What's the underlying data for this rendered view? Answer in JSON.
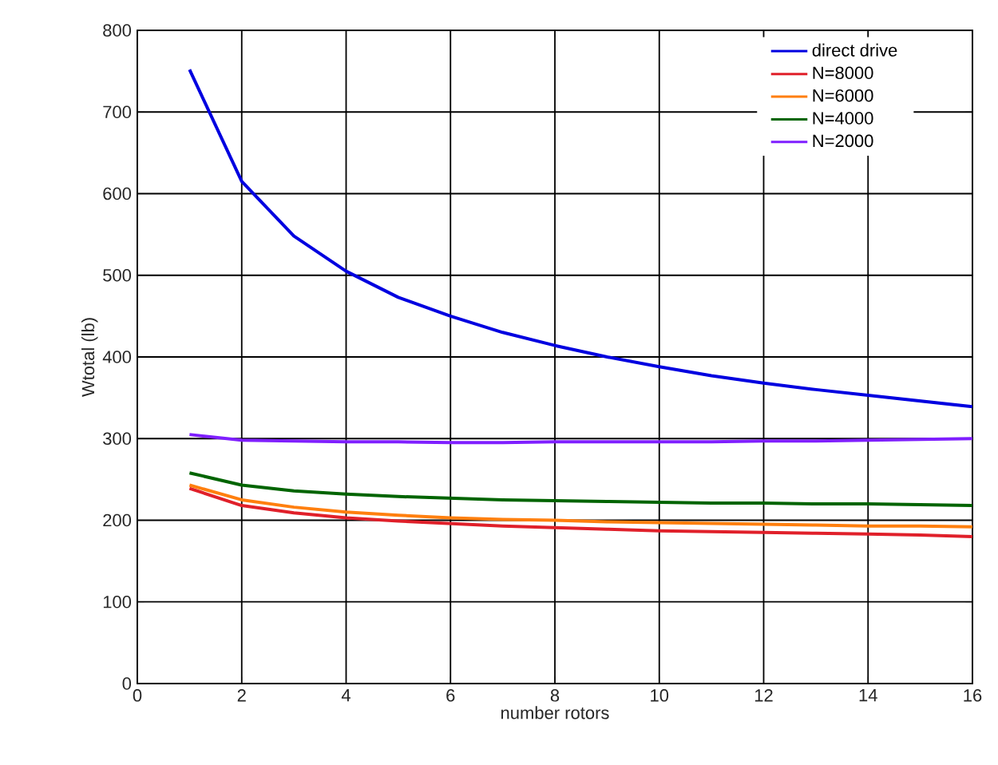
{
  "chart_data": {
    "type": "line",
    "xlabel": "number rotors",
    "ylabel": "Wtotal (lb)",
    "x": [
      1,
      2,
      3,
      4,
      5,
      6,
      7,
      8,
      9,
      10,
      11,
      12,
      13,
      14,
      15,
      16
    ],
    "series": [
      {
        "name": "direct drive",
        "color": "#0000e0",
        "values": [
          752,
          615,
          548,
          505,
          473,
          450,
          430,
          414,
          400,
          388,
          377,
          368,
          360,
          353,
          346,
          339
        ]
      },
      {
        "name": "N=8000",
        "color": "#e0202a",
        "values": [
          239,
          218,
          209,
          203,
          199,
          196,
          193,
          191,
          189,
          187,
          186,
          185,
          184,
          183,
          182,
          180
        ]
      },
      {
        "name": "N=6000",
        "color": "#ff7f0e",
        "values": [
          243,
          225,
          216,
          210,
          206,
          203,
          201,
          200,
          198,
          197,
          196,
          195,
          194,
          193,
          193,
          192
        ]
      },
      {
        "name": "N=4000",
        "color": "#006400",
        "values": [
          258,
          243,
          236,
          232,
          229,
          227,
          225,
          224,
          223,
          222,
          221,
          221,
          220,
          220,
          219,
          218
        ]
      },
      {
        "name": "N=2000",
        "color": "#7f1fff",
        "values": [
          305,
          298,
          297,
          296,
          296,
          295,
          295,
          296,
          296,
          296,
          296,
          297,
          297,
          298,
          299,
          300
        ]
      }
    ],
    "xlim": [
      0,
      16
    ],
    "ylim": [
      0,
      800
    ],
    "xticks": [
      0,
      2,
      4,
      6,
      8,
      10,
      12,
      14,
      16
    ],
    "yticks": [
      0,
      100,
      200,
      300,
      400,
      500,
      600,
      700,
      800
    ],
    "grid": true,
    "legend": "top right",
    "marker": "none",
    "line_style": "solid"
  }
}
